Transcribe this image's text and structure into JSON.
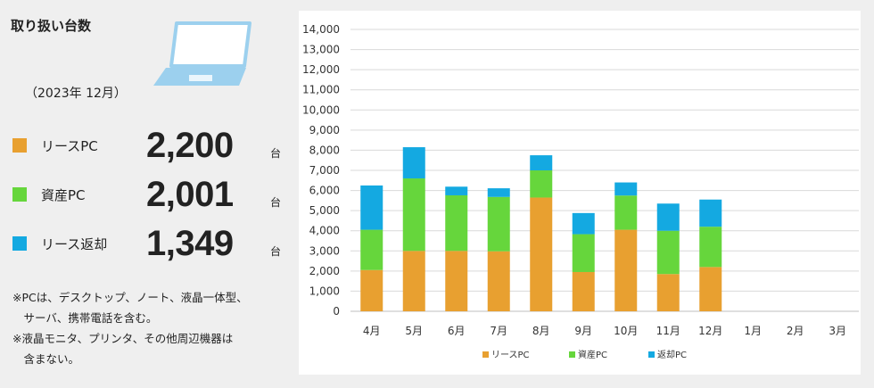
{
  "panel": {
    "title": "取り扱い台数",
    "period": "（2023年 12月）",
    "stats": [
      {
        "label": "リースPC",
        "value": "2,200",
        "unit": "台",
        "color": "#E8A030"
      },
      {
        "label": "資産PC",
        "value": "2,001",
        "unit": "台",
        "color": "#66D63C"
      },
      {
        "label": "リース返却",
        "value": "1,349",
        "unit": "台",
        "color": "#14A9E1"
      }
    ],
    "notes": [
      "※PCは、デスクトップ、ノート、液晶一体型、",
      "　サーバ、携帯電話を含む。",
      "※液晶モニタ、プリンタ、その他周辺機器は",
      "　含まない。"
    ]
  },
  "chart_data": {
    "type": "bar",
    "stacked": true,
    "categories": [
      "4月",
      "5月",
      "6月",
      "7月",
      "8月",
      "9月",
      "10月",
      "11月",
      "12月",
      "1月",
      "2月",
      "3月"
    ],
    "series": [
      {
        "name": "リースPC",
        "color": "#E8A030",
        "values": [
          2050,
          3000,
          3000,
          2980,
          5650,
          1950,
          4050,
          1850,
          2200,
          null,
          null,
          null
        ]
      },
      {
        "name": "資産PC",
        "color": "#66D63C",
        "values": [
          2000,
          3600,
          2760,
          2700,
          1350,
          1880,
          1700,
          2150,
          2001,
          null,
          null,
          null
        ]
      },
      {
        "name": "返却PC",
        "color": "#14A9E1",
        "values": [
          2200,
          1550,
          430,
          430,
          750,
          1050,
          650,
          1350,
          1349,
          null,
          null,
          null
        ]
      }
    ],
    "ylim": [
      0,
      14000
    ],
    "yticks": [
      "0",
      "1,000",
      "2,000",
      "3,000",
      "4,000",
      "5,000",
      "6,000",
      "7,000",
      "8,000",
      "9,000",
      "10,000",
      "11,000",
      "12,000",
      "13,000",
      "14,000"
    ],
    "grid": true,
    "legend": "bottom-center",
    "legend_labels": [
      "リースPC",
      "資産PC",
      "返却PC"
    ]
  }
}
